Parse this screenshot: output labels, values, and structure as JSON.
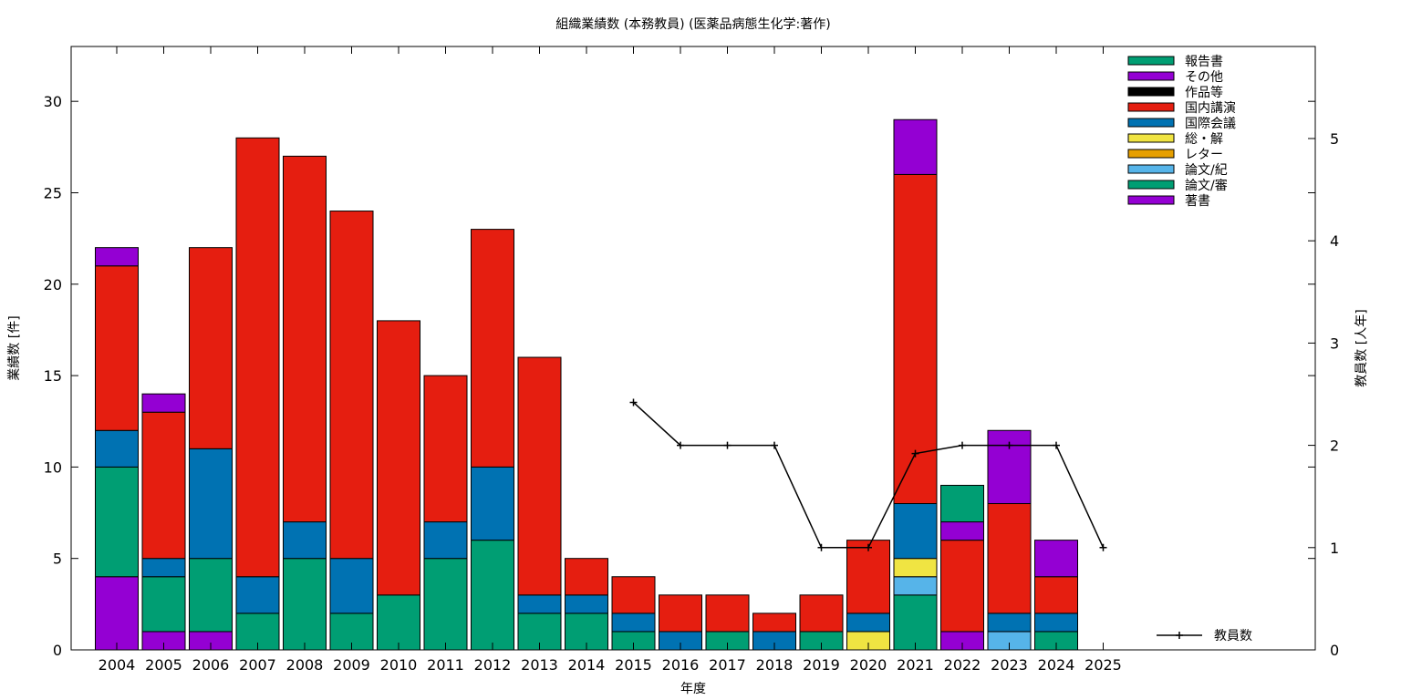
{
  "chart_data": {
    "type": "bar",
    "stacked": true,
    "title": "組織業績数 (本務教員) (医薬品病態生化学:著作)",
    "xlabel": "年度",
    "ylabel": "業績数 [件]",
    "y2label": "教員数 [人年]",
    "categories": [
      "2004",
      "2005",
      "2006",
      "2007",
      "2008",
      "2009",
      "2010",
      "2011",
      "2012",
      "2013",
      "2014",
      "2015",
      "2016",
      "2017",
      "2018",
      "2019",
      "2020",
      "2021",
      "2022",
      "2023",
      "2024",
      "2025"
    ],
    "ylim": [
      0,
      33
    ],
    "y2lim": [
      0,
      5.9
    ],
    "yticks": [
      0,
      5,
      10,
      15,
      20,
      25,
      30
    ],
    "y2ticks": [
      0,
      1,
      2,
      3,
      4,
      5
    ],
    "grid": false,
    "legend_position": "top-right",
    "series": [
      {
        "name": "著書",
        "color": "#9400d3",
        "values": [
          4,
          1,
          1,
          0,
          0,
          0,
          0,
          0,
          0,
          0,
          0,
          0,
          0,
          0,
          0,
          0,
          0,
          0,
          1,
          0,
          0,
          0
        ]
      },
      {
        "name": "論文/審",
        "color": "#009e73",
        "values": [
          6,
          3,
          4,
          2,
          5,
          2,
          3,
          5,
          6,
          2,
          2,
          1,
          0,
          1,
          0,
          1,
          0,
          3,
          0,
          0,
          1,
          0
        ]
      },
      {
        "name": "論文/紀",
        "color": "#56b4e9",
        "values": [
          0,
          0,
          0,
          0,
          0,
          0,
          0,
          0,
          0,
          0,
          0,
          0,
          0,
          0,
          0,
          0,
          0,
          1,
          0,
          1,
          0,
          0
        ]
      },
      {
        "name": "レター",
        "color": "#e69f00",
        "values": [
          0,
          0,
          0,
          0,
          0,
          0,
          0,
          0,
          0,
          0,
          0,
          0,
          0,
          0,
          0,
          0,
          0,
          0,
          0,
          0,
          0,
          0
        ]
      },
      {
        "name": "総・解",
        "color": "#f0e442",
        "values": [
          0,
          0,
          0,
          0,
          0,
          0,
          0,
          0,
          0,
          0,
          0,
          0,
          0,
          0,
          0,
          0,
          1,
          1,
          0,
          0,
          0,
          0
        ]
      },
      {
        "name": "国際会議",
        "color": "#0072b2",
        "values": [
          2,
          1,
          6,
          2,
          2,
          3,
          0,
          2,
          4,
          1,
          1,
          1,
          1,
          0,
          1,
          0,
          1,
          3,
          0,
          1,
          1,
          0
        ]
      },
      {
        "name": "国内講演",
        "color": "#e51e10",
        "values": [
          9,
          8,
          11,
          24,
          20,
          19,
          15,
          8,
          13,
          13,
          2,
          2,
          2,
          2,
          1,
          2,
          4,
          18,
          5,
          6,
          2,
          0
        ]
      },
      {
        "name": "作品等",
        "color": "#000000",
        "values": [
          0,
          0,
          0,
          0,
          0,
          0,
          0,
          0,
          0,
          0,
          0,
          0,
          0,
          0,
          0,
          0,
          0,
          0,
          0,
          0,
          0,
          0
        ]
      },
      {
        "name": "その他",
        "color": "#9400d3",
        "values": [
          1,
          1,
          0,
          0,
          0,
          0,
          0,
          0,
          0,
          0,
          0,
          0,
          0,
          0,
          0,
          0,
          0,
          3,
          1,
          4,
          2,
          0
        ]
      },
      {
        "name": "報告書",
        "color": "#009e73",
        "values": [
          0,
          0,
          0,
          0,
          0,
          0,
          0,
          0,
          0,
          0,
          0,
          0,
          0,
          0,
          0,
          0,
          0,
          0,
          2,
          0,
          0,
          0
        ]
      }
    ],
    "line_series": {
      "name": "教員数",
      "color": "#000000",
      "axis": "right",
      "values": [
        null,
        null,
        null,
        null,
        null,
        null,
        null,
        null,
        null,
        null,
        null,
        2.42,
        2,
        2,
        2,
        1,
        1,
        1.92,
        2,
        2,
        2,
        1
      ]
    },
    "legend_order": [
      "報告書",
      "その他",
      "作品等",
      "国内講演",
      "国際会議",
      "総・解",
      "レター",
      "論文/紀",
      "論文/審",
      "著書"
    ]
  }
}
